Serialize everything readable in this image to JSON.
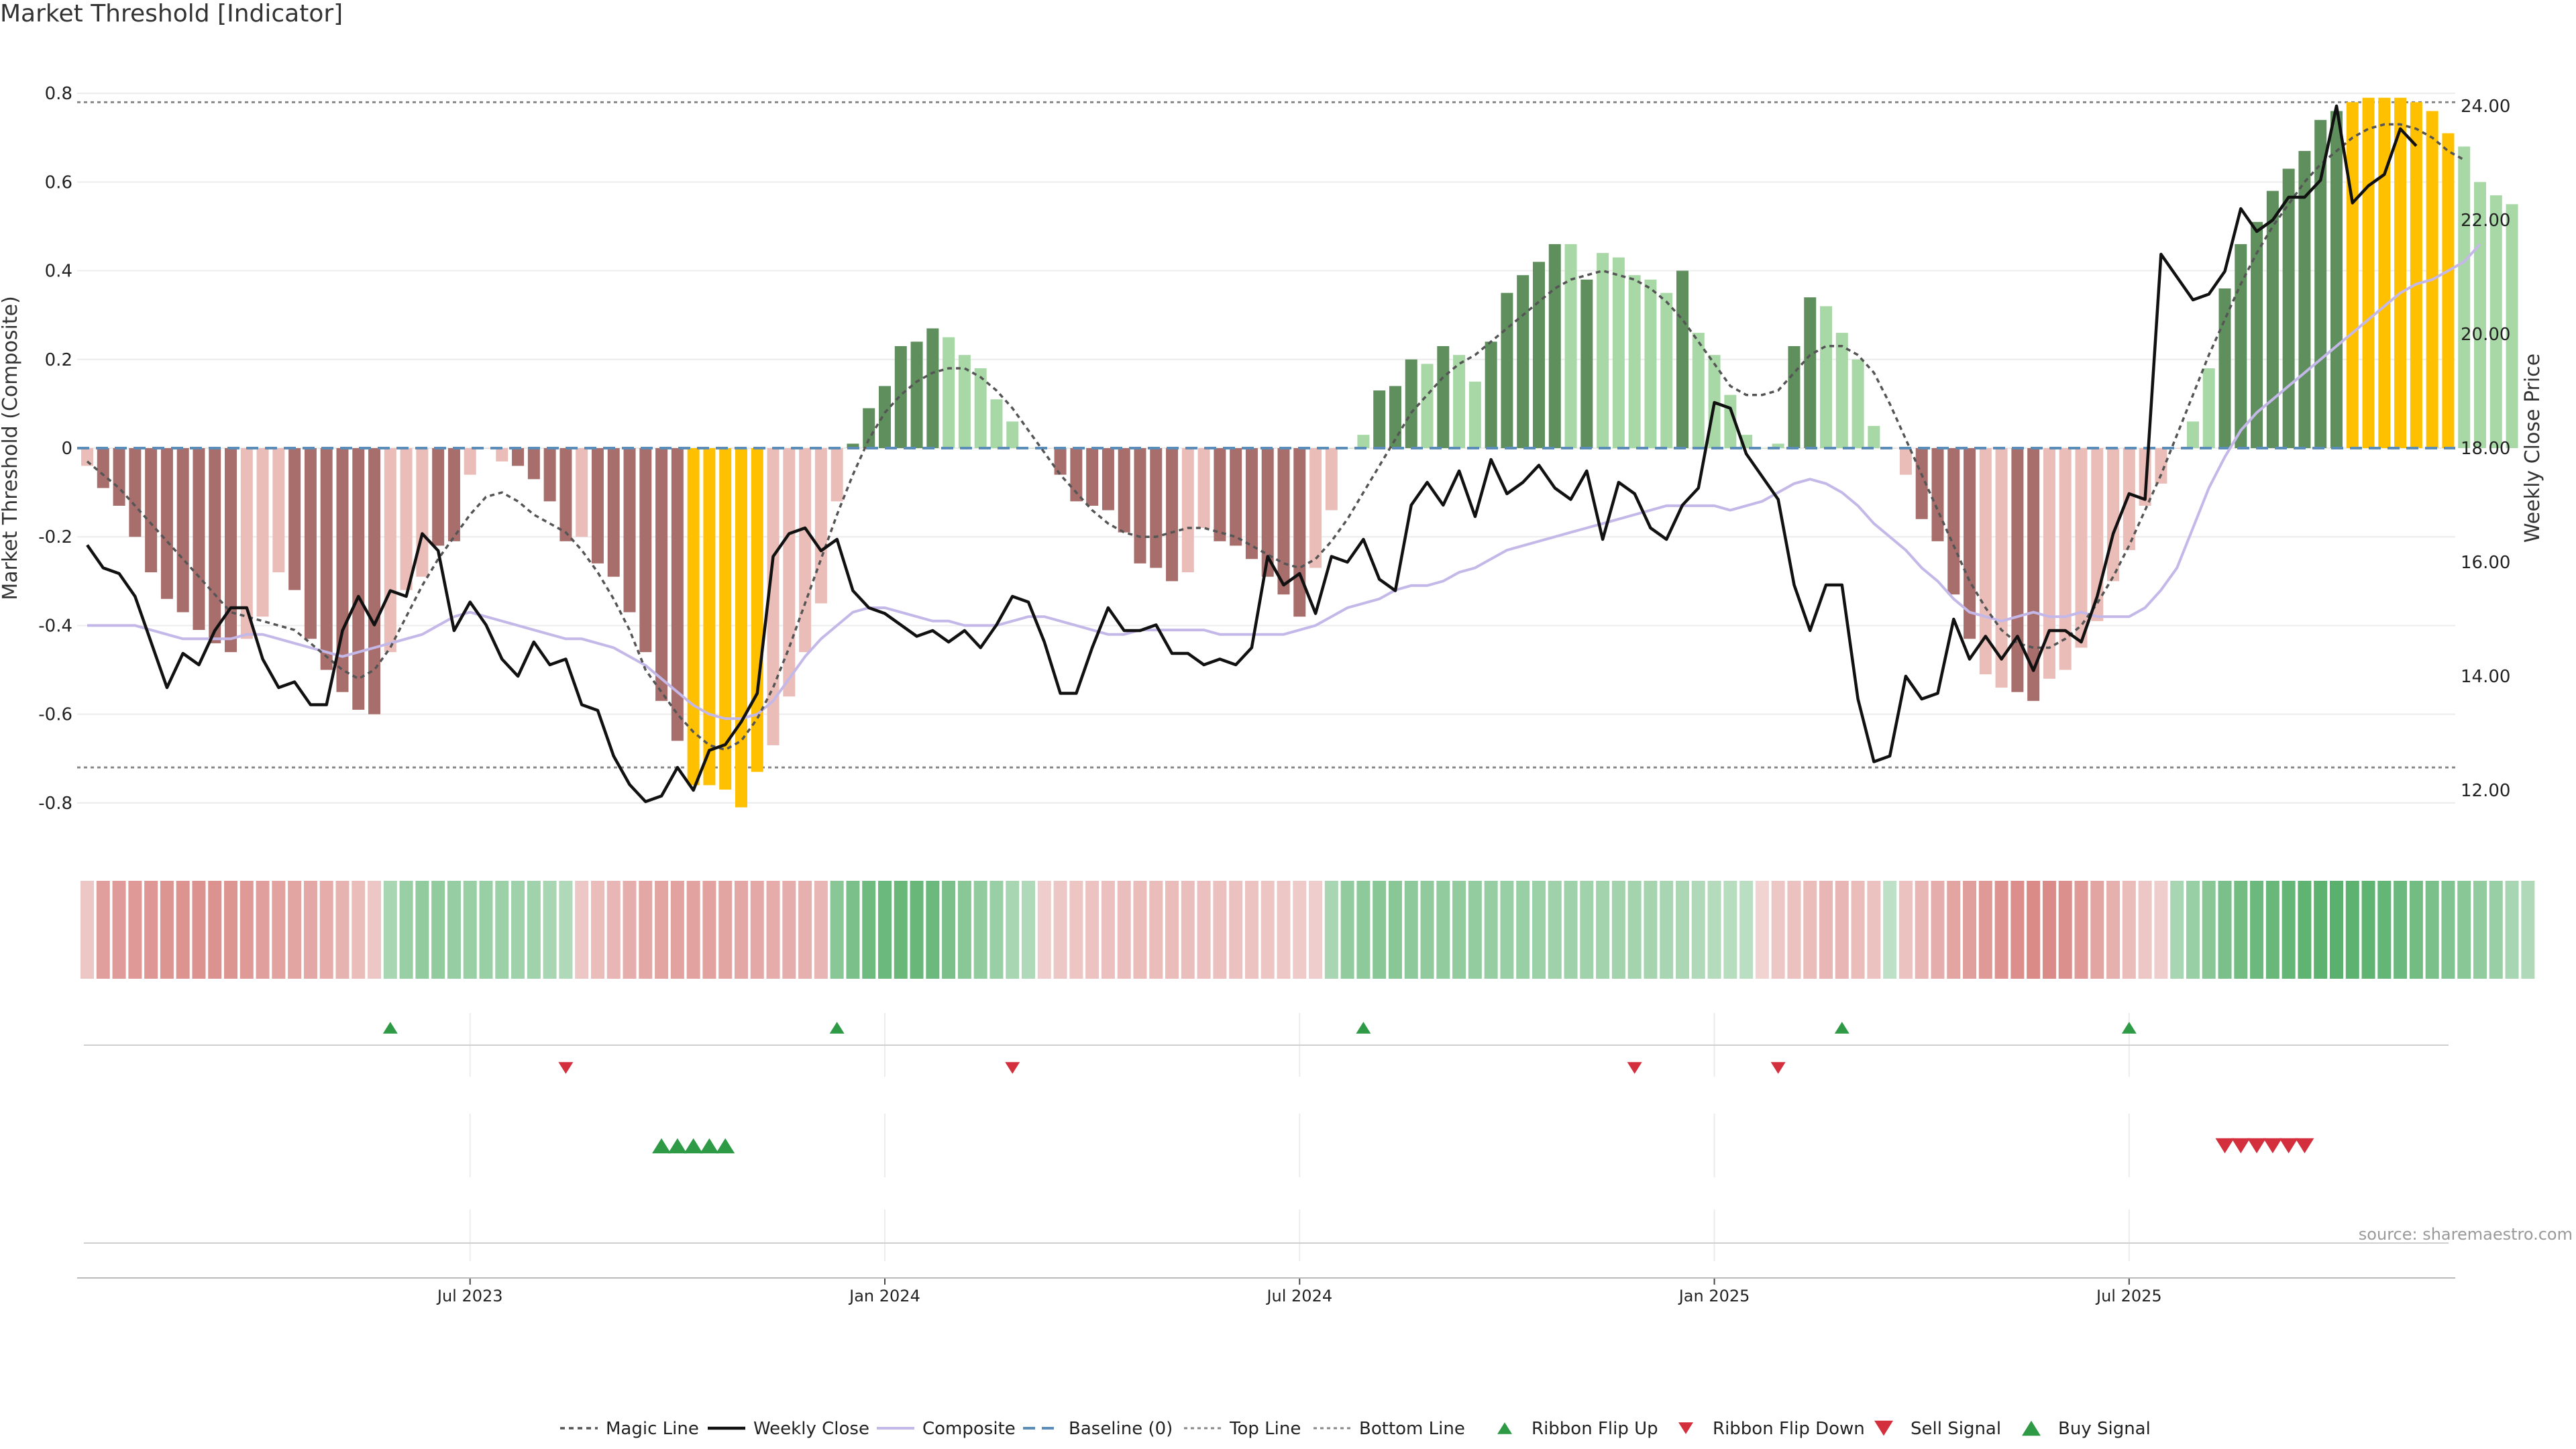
{
  "title": "Market Threshold [Indicator]",
  "source_note": "source: sharemaestro.com",
  "colors": {
    "bear_dark": "#a86e6c",
    "bear_light": "#ebbdb8",
    "bull_dark": "#5f8f5d",
    "bull_light": "#a8d8a6",
    "extreme": "#ffc000",
    "weekly_close": "#111111",
    "composite": "#c4b8e8",
    "baseline": "#5b8db8",
    "ribbon_green": "#3fa455",
    "ribbon_red": "#d06b67",
    "signal_green": "#2e9a45",
    "signal_red": "#d32f3c"
  },
  "chart_data": {
    "type": "bar",
    "ylabel": "Market Threshold (Composite)",
    "y2label": "Weekly Close Price",
    "ylim": [
      -0.9,
      0.9
    ],
    "y2lim": [
      11.0,
      25.0
    ],
    "yticks": [
      -0.8,
      -0.6,
      -0.4,
      -0.2,
      0,
      0.2,
      0.4,
      0.6,
      0.8
    ],
    "ytick_labels": [
      "-0.8",
      "-0.6",
      "-0.4",
      "-0.2",
      "0",
      "0.2",
      "0.4",
      "0.6",
      "0.8"
    ],
    "y2ticks": [
      12,
      14,
      16,
      18,
      20,
      22,
      24
    ],
    "y2tick_labels": [
      "12.00",
      "14.00",
      "16.00",
      "18.00",
      "20.00",
      "22.00",
      "24.00"
    ],
    "top_line": 0.78,
    "bottom_line": -0.72,
    "x_ticks": [
      {
        "week": 24,
        "label": "Jul 2023"
      },
      {
        "week": 50,
        "label": "Jan 2024"
      },
      {
        "week": 76,
        "label": "Jul 2024"
      },
      {
        "week": 102,
        "label": "Jan 2025"
      },
      {
        "week": 128,
        "label": "Jul 2025"
      }
    ],
    "composite_bars": [
      -0.04,
      -0.09,
      -0.13,
      -0.2,
      -0.28,
      -0.34,
      -0.37,
      -0.41,
      -0.44,
      -0.46,
      -0.43,
      -0.38,
      -0.28,
      -0.32,
      -0.43,
      -0.5,
      -0.55,
      -0.59,
      -0.6,
      -0.46,
      -0.32,
      -0.29,
      -0.22,
      -0.21,
      -0.06,
      0,
      -0.03,
      -0.04,
      -0.07,
      -0.12,
      -0.21,
      -0.2,
      -0.26,
      -0.29,
      -0.37,
      -0.46,
      -0.57,
      -0.66,
      -0.76,
      -0.76,
      -0.77,
      -0.81,
      -0.73,
      -0.67,
      -0.56,
      -0.46,
      -0.35,
      -0.12,
      0.01,
      0.09,
      0.14,
      0.23,
      0.24,
      0.27,
      0.25,
      0.21,
      0.18,
      0.11,
      0.06,
      0,
      0,
      -0.06,
      -0.12,
      -0.13,
      -0.14,
      -0.19,
      -0.26,
      -0.27,
      -0.3,
      -0.28,
      -0.18,
      -0.21,
      -0.22,
      -0.25,
      -0.29,
      -0.33,
      -0.38,
      -0.27,
      -0.14,
      0,
      0.03,
      0.13,
      0.14,
      0.2,
      0.19,
      0.23,
      0.21,
      0.15,
      0.24,
      0.35,
      0.39,
      0.42,
      0.46,
      0.46,
      0.38,
      0.44,
      0.43,
      0.39,
      0.38,
      0.35,
      0.4,
      0.26,
      0.21,
      0.12,
      0.03,
      0,
      0.01,
      0.23,
      0.34,
      0.32,
      0.26,
      0.2,
      0.05,
      0,
      -0.06,
      -0.16,
      -0.21,
      -0.33,
      -0.43,
      -0.51,
      -0.54,
      -0.55,
      -0.57,
      -0.52,
      -0.5,
      -0.45,
      -0.39,
      -0.3,
      -0.23,
      -0.13,
      -0.08,
      0,
      0.06,
      0.18,
      0.36,
      0.46,
      0.51,
      0.58,
      0.63,
      0.67,
      0.74,
      0.76,
      0.78,
      0.79,
      0.79,
      0.79,
      0.78,
      0.76,
      0.71,
      0.68,
      0.6,
      0.57,
      0.55
    ],
    "bar_classes": [
      "bear_light",
      "bear_dark",
      "bear_dark",
      "bear_dark",
      "bear_dark",
      "bear_dark",
      "bear_dark",
      "bear_dark",
      "bear_dark",
      "bear_dark",
      "bear_light",
      "bear_light",
      "bear_light",
      "bear_dark",
      "bear_dark",
      "bear_dark",
      "bear_dark",
      "bear_dark",
      "bear_dark",
      "bear_light",
      "bear_light",
      "bear_light",
      "bear_dark",
      "bear_dark",
      "bear_light",
      "bear_light",
      "bear_light",
      "bear_dark",
      "bear_dark",
      "bear_dark",
      "bear_dark",
      "bear_light",
      "bear_dark",
      "bear_dark",
      "bear_dark",
      "bear_dark",
      "bear_dark",
      "bear_dark",
      "extreme",
      "extreme",
      "extreme",
      "extreme",
      "extreme",
      "bear_light",
      "bear_light",
      "bear_light",
      "bear_light",
      "bear_light",
      "bull_dark",
      "bull_dark",
      "bull_dark",
      "bull_dark",
      "bull_dark",
      "bull_dark",
      "bull_light",
      "bull_light",
      "bull_light",
      "bull_light",
      "bull_light",
      "bull_light",
      "bear_light",
      "bear_dark",
      "bear_dark",
      "bear_dark",
      "bear_dark",
      "bear_dark",
      "bear_dark",
      "bear_dark",
      "bear_dark",
      "bear_light",
      "bear_light",
      "bear_dark",
      "bear_dark",
      "bear_dark",
      "bear_dark",
      "bear_dark",
      "bear_dark",
      "bear_light",
      "bear_light",
      "bull_light",
      "bull_light",
      "bull_dark",
      "bull_dark",
      "bull_dark",
      "bull_light",
      "bull_dark",
      "bull_light",
      "bull_light",
      "bull_dark",
      "bull_dark",
      "bull_dark",
      "bull_dark",
      "bull_dark",
      "bull_light",
      "bull_dark",
      "bull_light",
      "bull_light",
      "bull_light",
      "bull_light",
      "bull_light",
      "bull_dark",
      "bull_light",
      "bull_light",
      "bull_light",
      "bull_light",
      "bull_light",
      "bull_light",
      "bull_dark",
      "bull_dark",
      "bull_light",
      "bull_light",
      "bull_light",
      "bull_light",
      "bear_light",
      "bear_light",
      "bear_dark",
      "bear_dark",
      "bear_dark",
      "bear_dark",
      "bear_light",
      "bear_light",
      "bear_dark",
      "bear_dark",
      "bear_light",
      "bear_light",
      "bear_light",
      "bear_light",
      "bear_light",
      "bear_light",
      "bear_light",
      "bear_light",
      "bear_light",
      "bull_light",
      "bull_light",
      "bull_dark",
      "bull_dark",
      "bull_dark",
      "bull_dark",
      "bull_dark",
      "bull_dark",
      "bull_dark",
      "bull_dark",
      "extreme",
      "extreme",
      "extreme",
      "extreme",
      "extreme",
      "extreme",
      "extreme",
      "bull_light",
      "bull_light",
      "bull_light",
      "bull_light",
      "bull_light",
      "bull_light"
    ],
    "magic_line": [
      -0.03,
      -0.06,
      -0.09,
      -0.13,
      -0.17,
      -0.21,
      -0.25,
      -0.29,
      -0.33,
      -0.37,
      -0.38,
      -0.39,
      -0.4,
      -0.41,
      -0.44,
      -0.47,
      -0.5,
      -0.52,
      -0.5,
      -0.45,
      -0.38,
      -0.31,
      -0.25,
      -0.2,
      -0.15,
      -0.11,
      -0.1,
      -0.12,
      -0.15,
      -0.17,
      -0.19,
      -0.23,
      -0.28,
      -0.34,
      -0.41,
      -0.5,
      -0.55,
      -0.6,
      -0.64,
      -0.67,
      -0.68,
      -0.66,
      -0.61,
      -0.54,
      -0.45,
      -0.35,
      -0.25,
      -0.15,
      -0.06,
      0.02,
      0.08,
      0.12,
      0.15,
      0.17,
      0.18,
      0.18,
      0.16,
      0.13,
      0.09,
      0.04,
      -0.01,
      -0.06,
      -0.1,
      -0.14,
      -0.17,
      -0.19,
      -0.2,
      -0.2,
      -0.19,
      -0.18,
      -0.18,
      -0.19,
      -0.2,
      -0.22,
      -0.24,
      -0.26,
      -0.27,
      -0.25,
      -0.21,
      -0.16,
      -0.1,
      -0.04,
      0.02,
      0.08,
      0.12,
      0.16,
      0.19,
      0.21,
      0.24,
      0.27,
      0.3,
      0.33,
      0.36,
      0.38,
      0.39,
      0.4,
      0.39,
      0.38,
      0.36,
      0.33,
      0.29,
      0.24,
      0.19,
      0.14,
      0.12,
      0.12,
      0.13,
      0.17,
      0.21,
      0.23,
      0.23,
      0.21,
      0.17,
      0.1,
      0.02,
      -0.06,
      -0.14,
      -0.22,
      -0.3,
      -0.36,
      -0.41,
      -0.44,
      -0.45,
      -0.45,
      -0.43,
      -0.4,
      -0.35,
      -0.29,
      -0.22,
      -0.14,
      -0.06,
      0.03,
      0.12,
      0.21,
      0.29,
      0.37,
      0.44,
      0.5,
      0.55,
      0.6,
      0.64,
      0.67,
      0.7,
      0.72,
      0.73,
      0.73,
      0.72,
      0.7,
      0.67,
      0.65
    ],
    "weekly_close": [
      16.3,
      15.9,
      15.8,
      15.4,
      14.6,
      13.8,
      14.4,
      14.2,
      14.8,
      15.2,
      15.2,
      14.3,
      13.8,
      13.9,
      13.5,
      13.5,
      14.8,
      15.4,
      14.9,
      15.5,
      15.4,
      16.5,
      16.2,
      14.8,
      15.3,
      14.9,
      14.3,
      14.0,
      14.6,
      14.2,
      14.3,
      13.5,
      13.4,
      12.6,
      12.1,
      11.8,
      11.9,
      12.4,
      12.0,
      12.7,
      12.8,
      13.2,
      13.7,
      16.1,
      16.5,
      16.6,
      16.2,
      16.4,
      15.5,
      15.2,
      15.1,
      14.9,
      14.7,
      14.8,
      14.6,
      14.8,
      14.5,
      14.9,
      15.4,
      15.3,
      14.6,
      13.7,
      13.7,
      14.5,
      15.2,
      14.8,
      14.8,
      14.9,
      14.4,
      14.4,
      14.2,
      14.3,
      14.2,
      14.5,
      16.1,
      15.6,
      15.8,
      15.1,
      16.1,
      16.0,
      16.4,
      15.7,
      15.5,
      17.0,
      17.4,
      17.0,
      17.6,
      16.8,
      17.8,
      17.2,
      17.4,
      17.7,
      17.3,
      17.1,
      17.6,
      16.4,
      17.4,
      17.2,
      16.6,
      16.4,
      17.0,
      17.3,
      18.8,
      18.7,
      17.9,
      17.5,
      17.1,
      15.6,
      14.8,
      15.6,
      15.6,
      13.6,
      12.5,
      12.6,
      14.0,
      13.6,
      13.7,
      15.0,
      14.3,
      14.7,
      14.3,
      14.7,
      14.1,
      14.8,
      14.8,
      14.6,
      15.4,
      16.5,
      17.2,
      17.1,
      21.4,
      21.0,
      20.6,
      20.7,
      21.1,
      22.2,
      21.8,
      22.0,
      22.4,
      22.4,
      22.7,
      24.0,
      22.3,
      22.6,
      22.8,
      23.6,
      23.3
    ],
    "composite_line": [
      -0.4,
      -0.4,
      -0.4,
      -0.4,
      -0.41,
      -0.42,
      -0.43,
      -0.43,
      -0.43,
      -0.43,
      -0.42,
      -0.42,
      -0.43,
      -0.44,
      -0.45,
      -0.46,
      -0.47,
      -0.46,
      -0.45,
      -0.44,
      -0.43,
      -0.42,
      -0.4,
      -0.38,
      -0.37,
      -0.38,
      -0.39,
      -0.4,
      -0.41,
      -0.42,
      -0.43,
      -0.43,
      -0.44,
      -0.45,
      -0.47,
      -0.49,
      -0.52,
      -0.55,
      -0.58,
      -0.6,
      -0.61,
      -0.61,
      -0.6,
      -0.57,
      -0.52,
      -0.47,
      -0.43,
      -0.4,
      -0.37,
      -0.36,
      -0.36,
      -0.37,
      -0.38,
      -0.39,
      -0.39,
      -0.4,
      -0.4,
      -0.4,
      -0.39,
      -0.38,
      -0.38,
      -0.39,
      -0.4,
      -0.41,
      -0.42,
      -0.42,
      -0.41,
      -0.41,
      -0.41,
      -0.41,
      -0.41,
      -0.42,
      -0.42,
      -0.42,
      -0.42,
      -0.42,
      -0.41,
      -0.4,
      -0.38,
      -0.36,
      -0.35,
      -0.34,
      -0.32,
      -0.31,
      -0.31,
      -0.3,
      -0.28,
      -0.27,
      -0.25,
      -0.23,
      -0.22,
      -0.21,
      -0.2,
      -0.19,
      -0.18,
      -0.17,
      -0.16,
      -0.15,
      -0.14,
      -0.13,
      -0.13,
      -0.13,
      -0.13,
      -0.14,
      -0.13,
      -0.12,
      -0.1,
      -0.08,
      -0.07,
      -0.08,
      -0.1,
      -0.13,
      -0.17,
      -0.2,
      -0.23,
      -0.27,
      -0.3,
      -0.34,
      -0.37,
      -0.38,
      -0.39,
      -0.38,
      -0.37,
      -0.38,
      -0.38,
      -0.37,
      -0.38,
      -0.38,
      -0.38,
      -0.36,
      -0.32,
      -0.27,
      -0.18,
      -0.09,
      -0.02,
      0.04,
      0.08,
      0.11,
      0.14,
      0.17,
      0.2,
      0.23,
      0.26,
      0.29,
      0.32,
      0.35,
      0.37,
      0.38,
      0.4,
      0.42,
      0.46
    ],
    "ribbon_strength": [
      -0.2,
      -0.55,
      -0.58,
      -0.6,
      -0.62,
      -0.64,
      -0.65,
      -0.66,
      -0.66,
      -0.64,
      -0.6,
      -0.55,
      -0.52,
      -0.5,
      -0.48,
      -0.44,
      -0.38,
      -0.3,
      -0.2,
      0.3,
      0.4,
      0.45,
      0.45,
      0.42,
      0.4,
      0.4,
      0.38,
      0.36,
      0.35,
      0.3,
      0.25,
      -0.2,
      -0.3,
      -0.35,
      -0.42,
      -0.48,
      -0.5,
      -0.52,
      -0.52,
      -0.52,
      -0.5,
      -0.48,
      -0.46,
      -0.44,
      -0.42,
      -0.4,
      -0.35,
      0.5,
      0.6,
      0.68,
      0.7,
      0.72,
      0.72,
      0.7,
      0.6,
      0.5,
      0.45,
      0.4,
      0.3,
      0.25,
      -0.15,
      -0.2,
      -0.22,
      -0.24,
      -0.26,
      -0.28,
      -0.3,
      -0.3,
      -0.3,
      -0.28,
      -0.26,
      -0.26,
      -0.25,
      -0.24,
      -0.22,
      -0.2,
      -0.18,
      -0.15,
      0.3,
      0.45,
      0.48,
      0.5,
      0.5,
      0.48,
      0.46,
      0.45,
      0.45,
      0.44,
      0.42,
      0.4,
      0.4,
      0.38,
      0.36,
      0.36,
      0.35,
      0.34,
      0.34,
      0.33,
      0.32,
      0.3,
      0.28,
      0.25,
      0.22,
      0.2,
      0.18,
      -0.1,
      -0.2,
      -0.25,
      -0.3,
      -0.35,
      -0.35,
      -0.3,
      -0.25,
      0.15,
      -0.25,
      -0.35,
      -0.42,
      -0.5,
      -0.55,
      -0.6,
      -0.65,
      -0.7,
      -0.72,
      -0.72,
      -0.68,
      -0.6,
      -0.5,
      -0.4,
      -0.3,
      -0.2,
      -0.15,
      0.3,
      0.4,
      0.5,
      0.6,
      0.65,
      0.7,
      0.72,
      0.75,
      0.78,
      0.8,
      0.82,
      0.8,
      0.78,
      0.75,
      0.7,
      0.65,
      0.6,
      0.55,
      0.5,
      0.45,
      0.4,
      0.3,
      0.25
    ],
    "ribbon_flip_up": [
      19,
      47,
      80,
      110,
      128
    ],
    "ribbon_flip_down": [
      30,
      58,
      97,
      106
    ],
    "buy_signal": [
      36,
      37,
      38,
      39,
      40
    ],
    "sell_signal": [
      134,
      135,
      136,
      137,
      138,
      139
    ],
    "legend": [
      {
        "key": "magic_line",
        "label": "Magic Line"
      },
      {
        "key": "weekly_close",
        "label": "Weekly Close"
      },
      {
        "key": "composite_line",
        "label": "Composite"
      },
      {
        "key": "baseline",
        "label": "Baseline (0)"
      },
      {
        "key": "top_line",
        "label": "Top Line"
      },
      {
        "key": "bottom_line",
        "label": "Bottom Line"
      },
      {
        "key": "ribbon_flip_up",
        "label": "Ribbon Flip Up"
      },
      {
        "key": "ribbon_flip_down",
        "label": "Ribbon Flip Down"
      },
      {
        "key": "sell_signal",
        "label": "Sell Signal"
      },
      {
        "key": "buy_signal",
        "label": "Buy Signal"
      }
    ]
  }
}
